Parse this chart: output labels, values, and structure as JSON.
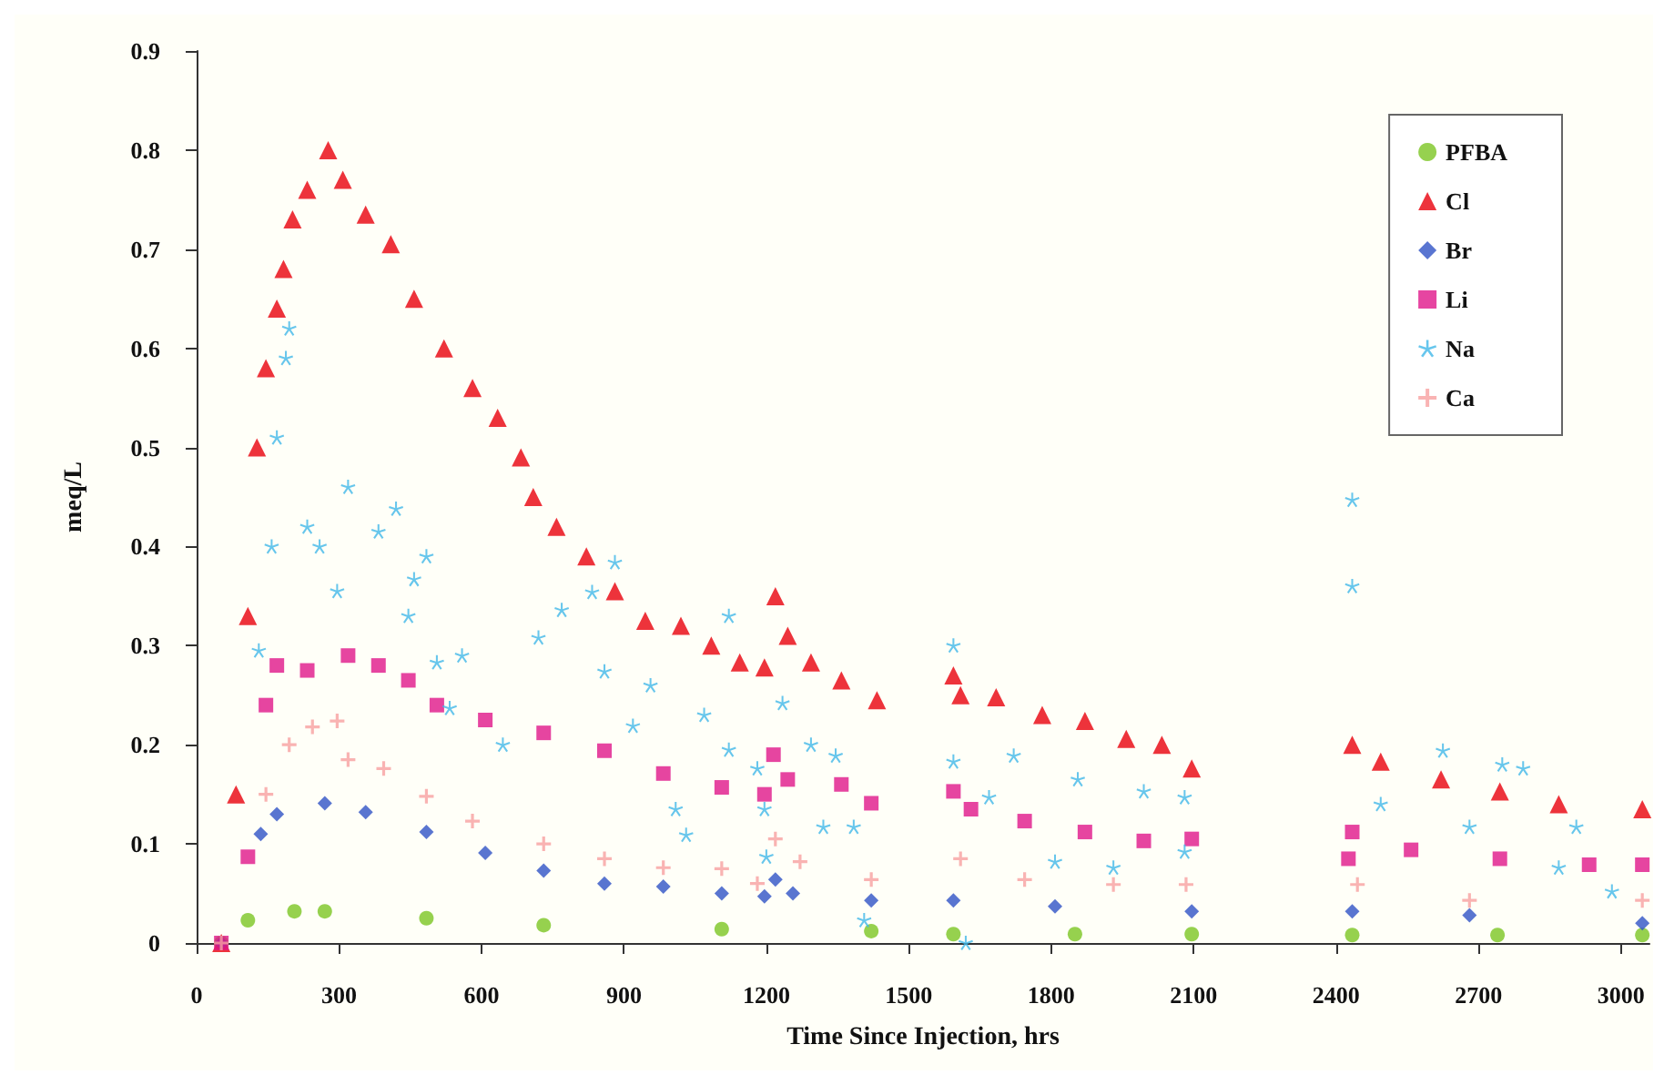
{
  "chart_data": {
    "type": "scatter",
    "xlabel": "Time Since Injection, hrs",
    "ylabel": "meq/L",
    "xlim": [
      0,
      3060
    ],
    "ylim": [
      0,
      0.9
    ],
    "xticks": [
      0,
      300,
      600,
      900,
      1200,
      1500,
      1800,
      2100,
      2400,
      2700,
      3000
    ],
    "yticks": [
      0,
      0.1,
      0.2,
      0.3,
      0.4,
      0.5,
      0.6,
      0.7,
      0.8,
      0.9
    ],
    "grid": false,
    "legend": "top right",
    "series": [
      {
        "name": "PFBA",
        "color": "#7cc623",
        "marker": "circle",
        "x": [
          52,
          108,
          206,
          270,
          484,
          731,
          1106,
          1421,
          1594,
          1850,
          2096,
          2434,
          2740,
          3045
        ],
        "values": [
          0,
          0.023,
          0.032,
          0.032,
          0.025,
          0.018,
          0.014,
          0.012,
          0.009,
          0.009,
          0.009,
          0.008,
          0.008,
          0.008
        ]
      },
      {
        "name": "Cl",
        "color": "#e8000b",
        "marker": "triangle",
        "x": [
          52,
          83,
          108,
          127,
          146,
          169,
          183,
          202,
          233,
          277,
          308,
          356,
          409,
          458,
          521,
          581,
          634,
          683,
          709,
          758,
          821,
          881,
          945,
          1020,
          1084,
          1144,
          1196,
          1219,
          1245,
          1294,
          1358,
          1433,
          1594,
          1609,
          1684,
          1781,
          1871,
          1958,
          2033,
          2096,
          2434,
          2494,
          2621,
          2745,
          2869,
          3045
        ],
        "values": [
          0,
          0.15,
          0.33,
          0.5,
          0.58,
          0.64,
          0.68,
          0.73,
          0.76,
          0.8,
          0.77,
          0.735,
          0.705,
          0.65,
          0.6,
          0.56,
          0.53,
          0.49,
          0.45,
          0.42,
          0.39,
          0.355,
          0.325,
          0.32,
          0.3,
          0.283,
          0.278,
          0.35,
          0.31,
          0.283,
          0.265,
          0.245,
          0.27,
          0.25,
          0.248,
          0.23,
          0.224,
          0.206,
          0.2,
          0.176,
          0.2,
          0.183,
          0.165,
          0.153,
          0.14,
          0.135
        ]
      },
      {
        "name": "Br",
        "color": "#2f52c6",
        "marker": "diamond",
        "x": [
          52,
          135,
          169,
          270,
          356,
          484,
          608,
          731,
          859,
          983,
          1106,
          1196,
          1219,
          1256,
          1421,
          1594,
          1808,
          2096,
          2434,
          2681,
          3045
        ],
        "values": [
          0,
          0.11,
          0.13,
          0.141,
          0.132,
          0.112,
          0.091,
          0.073,
          0.06,
          0.057,
          0.05,
          0.047,
          0.064,
          0.05,
          0.043,
          0.043,
          0.037,
          0.032,
          0.032,
          0.028,
          0.02
        ]
      },
      {
        "name": "Li",
        "color": "#e0168a",
        "marker": "square",
        "x": [
          52,
          108,
          146,
          169,
          233,
          319,
          383,
          446,
          506,
          608,
          731,
          859,
          983,
          1106,
          1196,
          1215,
          1245,
          1358,
          1421,
          1594,
          1631,
          1744,
          1871,
          1995,
          2096,
          2426,
          2434,
          2558,
          2745,
          2933,
          3045
        ],
        "values": [
          0,
          0.087,
          0.24,
          0.28,
          0.275,
          0.29,
          0.28,
          0.265,
          0.24,
          0.225,
          0.212,
          0.194,
          0.171,
          0.157,
          0.15,
          0.19,
          0.165,
          0.16,
          0.141,
          0.153,
          0.135,
          0.123,
          0.112,
          0.103,
          0.105,
          0.085,
          0.112,
          0.094,
          0.085,
          0.079,
          0.079
        ]
      },
      {
        "name": "Na",
        "color": "#41b8e8",
        "marker": "star",
        "x": [
          131,
          158,
          169,
          188,
          195,
          233,
          259,
          296,
          319,
          383,
          420,
          446,
          458,
          484,
          506,
          533,
          559,
          645,
          720,
          769,
          833,
          859,
          881,
          919,
          956,
          1009,
          1031,
          1069,
          1121,
          1121,
          1181,
          1196,
          1200,
          1234,
          1294,
          1320,
          1346,
          1384,
          1406,
          1594,
          1594,
          1620,
          1669,
          1721,
          1808,
          1856,
          1931,
          1995,
          2081,
          2081,
          2434,
          2434,
          2494,
          2625,
          2681,
          2750,
          2794,
          2869,
          2906,
          2981
        ],
        "values": [
          0.295,
          0.4,
          0.51,
          0.59,
          0.62,
          0.42,
          0.4,
          0.355,
          0.46,
          0.415,
          0.438,
          0.33,
          0.367,
          0.39,
          0.283,
          0.237,
          0.29,
          0.2,
          0.308,
          0.336,
          0.354,
          0.274,
          0.384,
          0.219,
          0.26,
          0.135,
          0.109,
          0.23,
          0.33,
          0.195,
          0.176,
          0.135,
          0.087,
          0.242,
          0.2,
          0.117,
          0.189,
          0.117,
          0.023,
          0.3,
          0.183,
          0,
          0.147,
          0.189,
          0.082,
          0.165,
          0.076,
          0.153,
          0.147,
          0.092,
          0.447,
          0.36,
          0.14,
          0.194,
          0.117,
          0.18,
          0.176,
          0.076,
          0.117,
          0.052
        ]
      },
      {
        "name": "Ca",
        "color": "#f7a0a0",
        "marker": "cross",
        "x": [
          52,
          146,
          195,
          244,
          296,
          319,
          394,
          484,
          581,
          731,
          859,
          983,
          1106,
          1181,
          1219,
          1271,
          1421,
          1609,
          1744,
          1931,
          2084,
          2445,
          2681,
          3045
        ],
        "values": [
          0,
          0.15,
          0.2,
          0.218,
          0.224,
          0.185,
          0.176,
          0.148,
          0.123,
          0.1,
          0.085,
          0.076,
          0.075,
          0.06,
          0.105,
          0.082,
          0.064,
          0.085,
          0.064,
          0.059,
          0.059,
          0.059,
          0.043,
          0.043
        ]
      }
    ]
  }
}
